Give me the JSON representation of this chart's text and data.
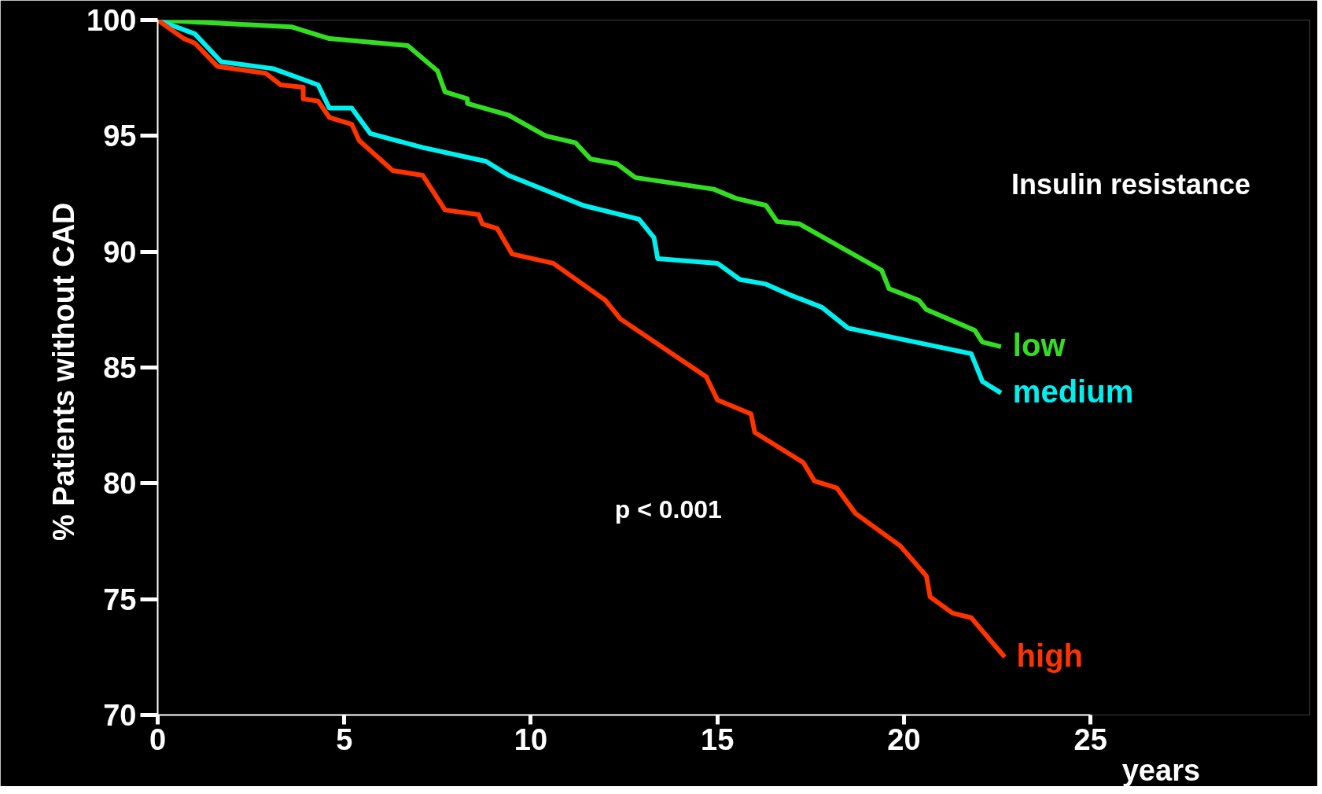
{
  "chart_data": {
    "type": "line",
    "xlabel": "years",
    "ylabel": "% Patients  without CAD",
    "xlim": [
      0,
      25
    ],
    "ylim": [
      70,
      100
    ],
    "xticks": [
      0,
      5,
      10,
      15,
      20,
      25
    ],
    "yticks": [
      70,
      75,
      80,
      85,
      90,
      95,
      100
    ],
    "grid": false,
    "marker": "none",
    "line_style": "solid",
    "annotations": [
      "Insulin resistance",
      "p < 0.001"
    ],
    "series": [
      {
        "name": "low",
        "color": "#33dd22",
        "x": [
          0,
          3.6,
          4.6,
          6.7,
          7.5,
          7.7,
          8.3,
          8.3,
          9.4,
          10.4,
          11.2,
          11.6,
          12.3,
          12.8,
          14.9,
          15.5,
          16.3,
          16.6,
          17.2,
          19.4,
          19.6,
          20.4,
          20.6,
          21.9,
          22.1,
          22.6
        ],
        "values": [
          100,
          99.7,
          99.2,
          98.9,
          97.8,
          96.9,
          96.6,
          96.4,
          95.9,
          95.0,
          94.7,
          94.0,
          93.8,
          93.2,
          92.7,
          92.3,
          92.0,
          91.3,
          91.2,
          89.2,
          88.4,
          87.9,
          87.5,
          86.6,
          86.1,
          85.9
        ]
      },
      {
        "name": "medium",
        "color": "#00f0f0",
        "x": [
          0,
          1.0,
          1.7,
          3.1,
          4.3,
          4.6,
          5.2,
          5.7,
          7.1,
          8.8,
          9.4,
          11.4,
          12.9,
          13.3,
          13.4,
          15.0,
          15.6,
          16.3,
          17.0,
          17.8,
          18.5,
          21.8,
          22.1,
          22.6
        ],
        "values": [
          100,
          99.4,
          98.2,
          97.9,
          97.2,
          96.2,
          96.2,
          95.1,
          94.5,
          93.9,
          93.3,
          92.0,
          91.4,
          90.6,
          89.7,
          89.5,
          88.8,
          88.6,
          88.1,
          87.6,
          86.7,
          85.6,
          84.4,
          83.9
        ]
      },
      {
        "name": "high",
        "color": "#ff3300",
        "x": [
          0,
          0.7,
          1.0,
          1.6,
          2.9,
          3.3,
          3.9,
          3.9,
          4.3,
          4.6,
          5.2,
          5.4,
          6.3,
          7.1,
          7.7,
          8.6,
          8.7,
          9.1,
          9.5,
          10.6,
          12.0,
          12.4,
          14.7,
          15.0,
          15.9,
          16.0,
          17.3,
          17.6,
          18.2,
          18.7,
          19.9,
          20.6,
          20.7,
          21.3,
          21.8,
          22.7
        ],
        "values": [
          100,
          99.2,
          99.0,
          98.0,
          97.7,
          97.2,
          97.1,
          96.6,
          96.5,
          95.8,
          95.5,
          94.8,
          93.5,
          93.3,
          91.8,
          91.6,
          91.2,
          91.0,
          89.9,
          89.5,
          87.9,
          87.1,
          84.6,
          83.6,
          83.0,
          82.2,
          80.9,
          80.1,
          79.8,
          78.7,
          77.3,
          76.0,
          75.1,
          74.4,
          74.2,
          72.5
        ]
      }
    ]
  }
}
